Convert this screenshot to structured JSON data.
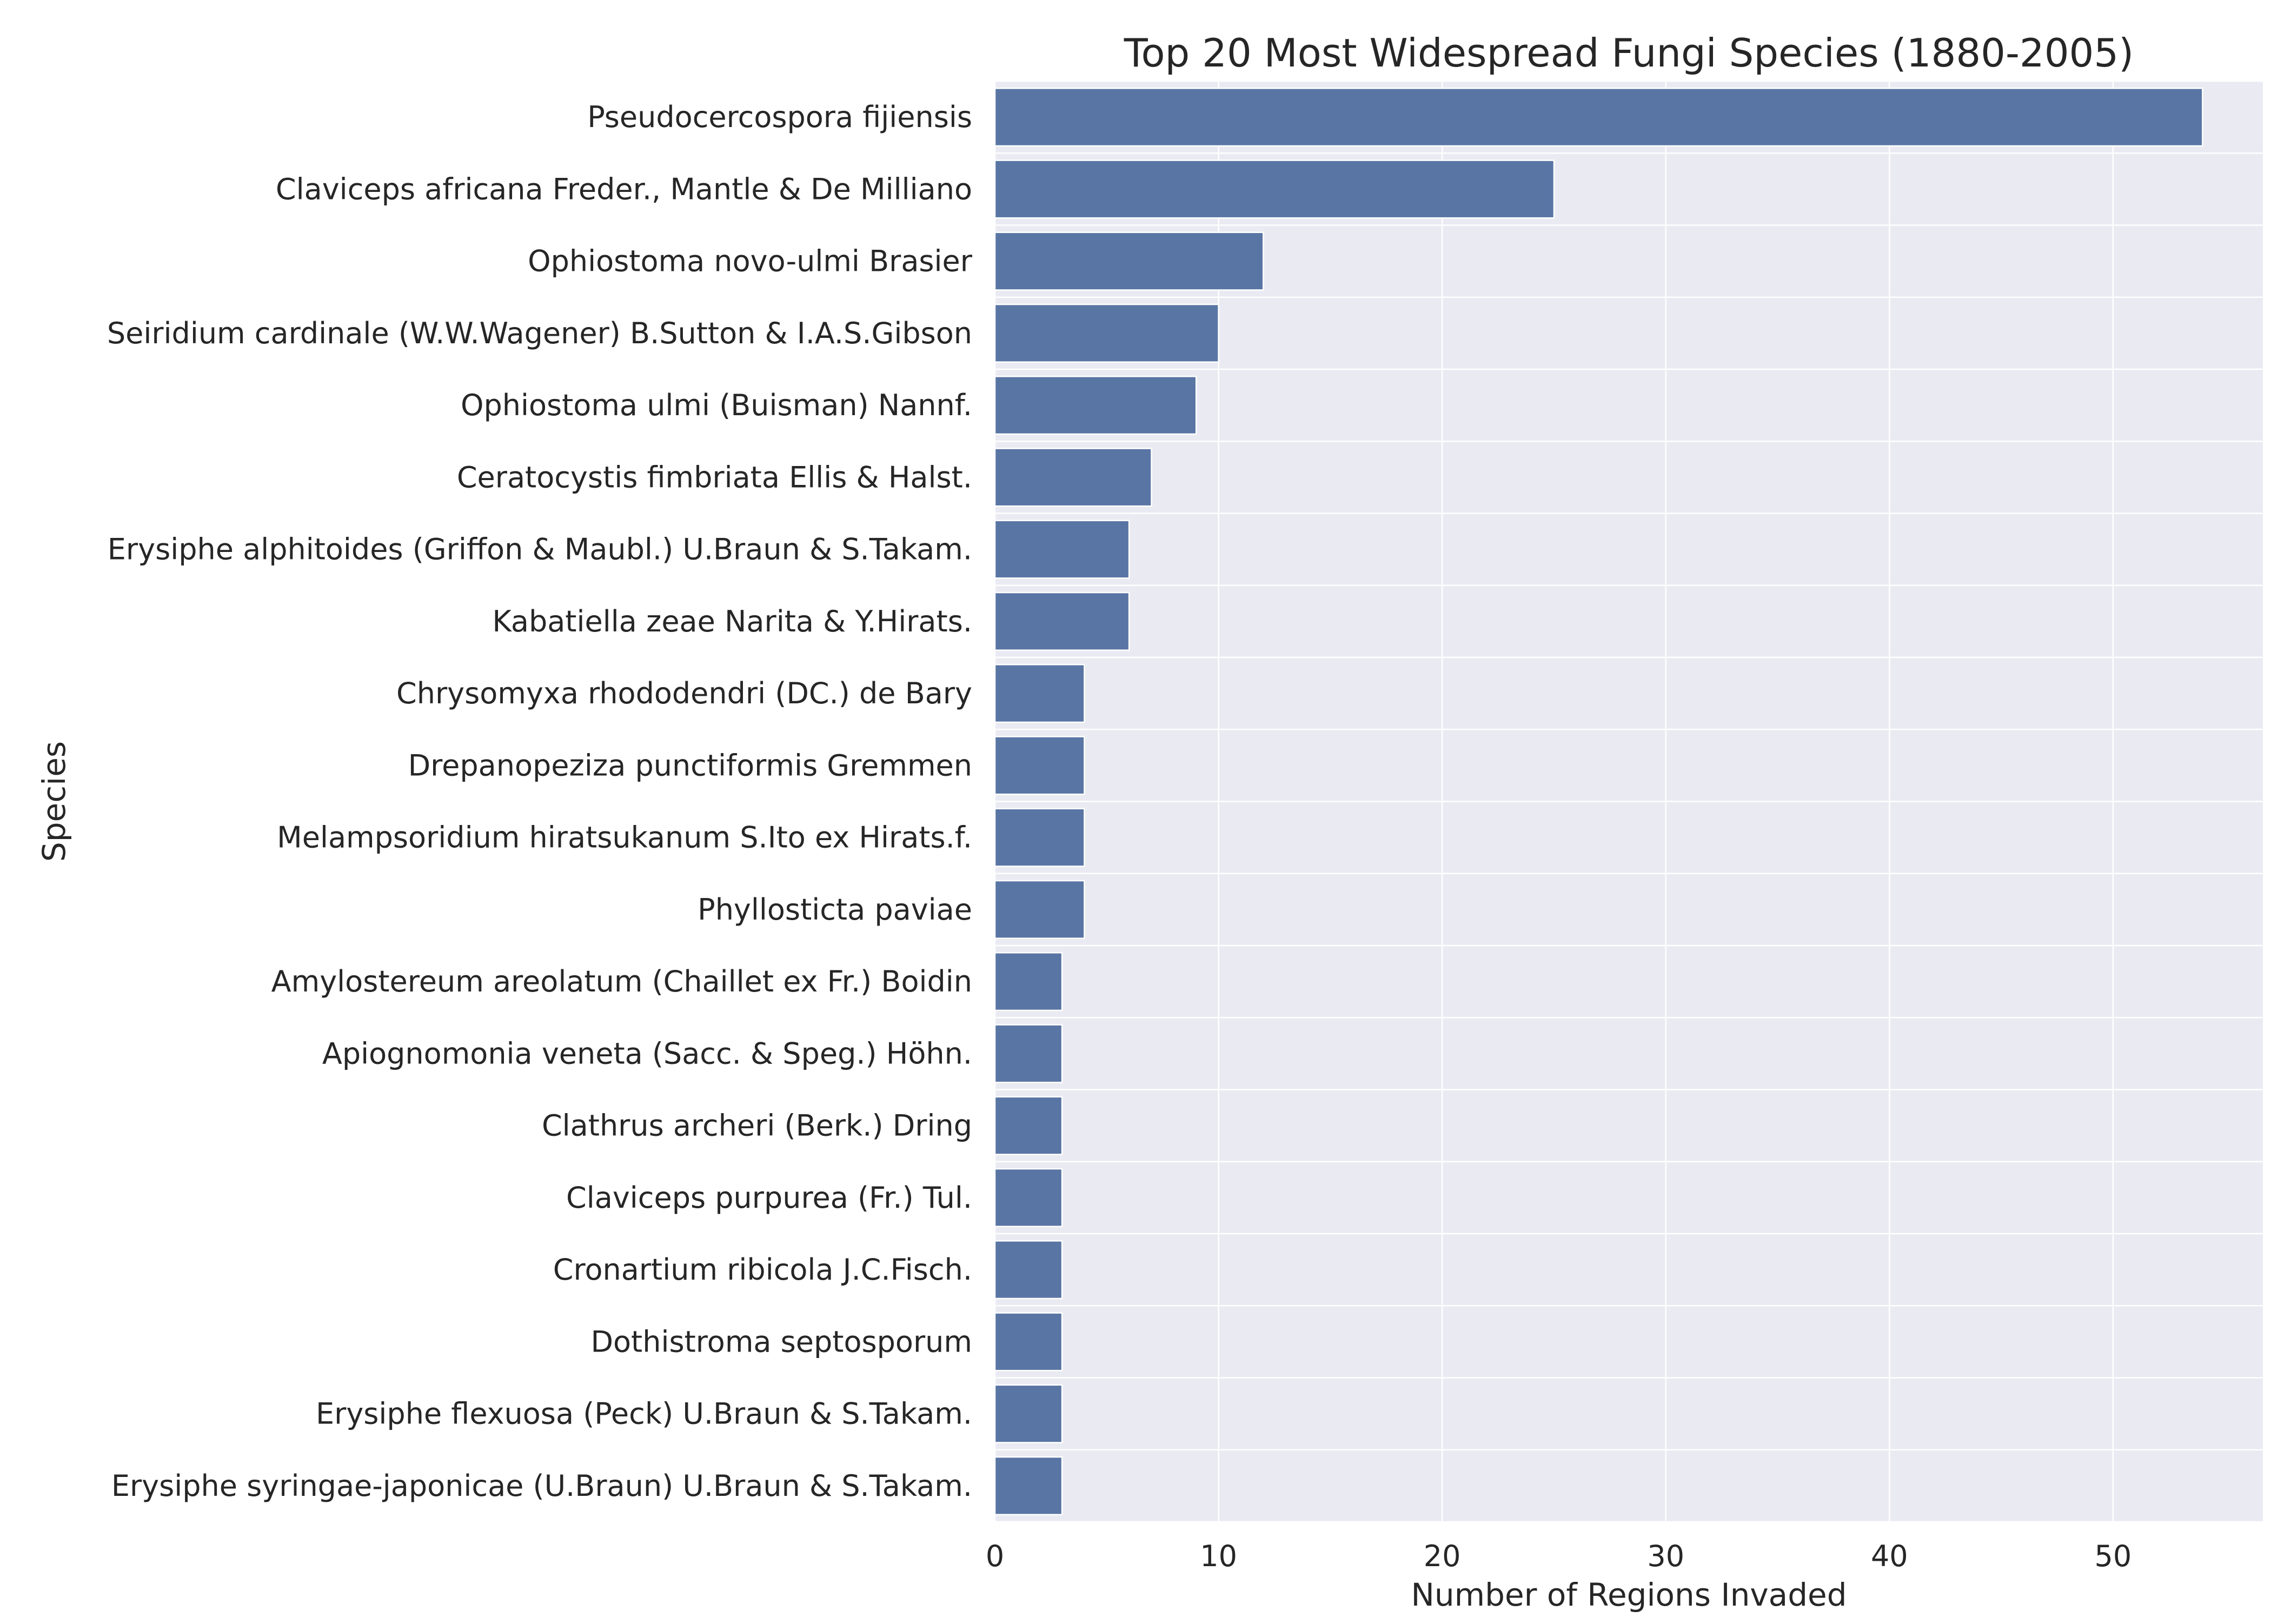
{
  "colors": {
    "bar": "#5975a4",
    "plot_background": "#eaeaf2",
    "grid": "#ffffff",
    "text": "#262626",
    "page_background": "#ffffff"
  },
  "chart_data": {
    "type": "bar",
    "orientation": "horizontal",
    "title": "Top 20 Most Widespread Fungi Species (1880-2005)",
    "xlabel": "Number of Regions Invaded",
    "ylabel": "Species",
    "xlim": [
      0,
      56.7
    ],
    "xticks": [
      0,
      10,
      20,
      30,
      40,
      50
    ],
    "grid": true,
    "legend": "none",
    "categories": [
      "Pseudocercospora fijiensis",
      "Claviceps africana Freder., Mantle & De Milliano",
      "Ophiostoma novo-ulmi Brasier",
      "Seiridium cardinale (W.W.Wagener) B.Sutton & I.A.S.Gibson",
      "Ophiostoma ulmi (Buisman) Nannf.",
      "Ceratocystis fimbriata Ellis & Halst.",
      "Erysiphe alphitoides (Griffon & Maubl.) U.Braun & S.Takam.",
      "Kabatiella zeae Narita & Y.Hirats.",
      "Chrysomyxa rhododendri (DC.) de Bary",
      "Drepanopeziza punctiformis Gremmen",
      "Melampsoridium hiratsukanum S.Ito ex Hirats.f.",
      "Phyllosticta paviae",
      "Amylostereum areolatum (Chaillet ex Fr.) Boidin",
      "Apiognomonia veneta (Sacc. & Speg.) Höhn.",
      "Clathrus archeri (Berk.) Dring",
      "Claviceps purpurea (Fr.) Tul.",
      "Cronartium ribicola J.C.Fisch.",
      "Dothistroma septosporum",
      "Erysiphe flexuosa (Peck) U.Braun & S.Takam.",
      "Erysiphe syringae-japonicae (U.Braun) U.Braun & S.Takam."
    ],
    "values": [
      54,
      25,
      12,
      10,
      9,
      7,
      6,
      6,
      4,
      4,
      4,
      4,
      3,
      3,
      3,
      3,
      3,
      3,
      3,
      3
    ]
  }
}
